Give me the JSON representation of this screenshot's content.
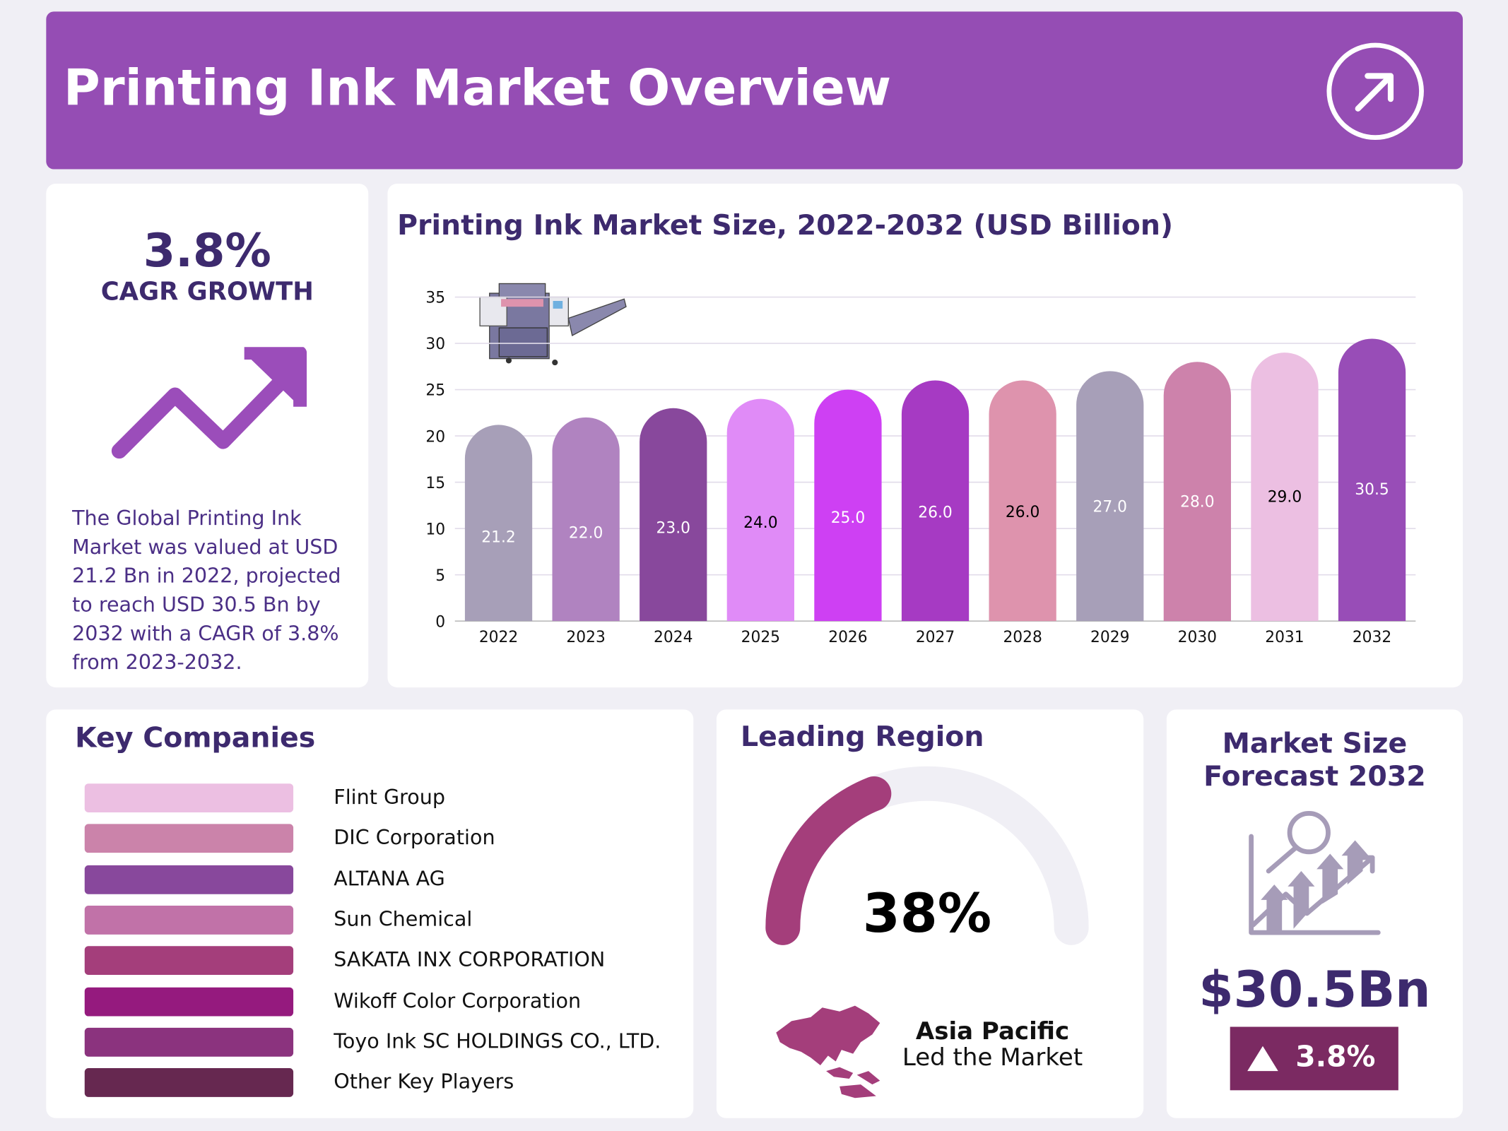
{
  "header": {
    "title": "Printing Ink Market Overview",
    "icon": "arrow-up-right-circle-icon"
  },
  "cagr": {
    "value": "3.8%",
    "label": "CAGR GROWTH",
    "icon": "trend-up-arrow-icon",
    "description": "The Global Printing Ink Market was valued at USD 21.2 Bn in 2022, projected to reach USD 30.5 Bn by 2032 with a CAGR of 3.8% from 2023-2032."
  },
  "chart_data": {
    "type": "bar",
    "title": "Printing Ink Market Size, 2022-2032 (USD Billion)",
    "categories": [
      "2022",
      "2023",
      "2024",
      "2025",
      "2026",
      "2027",
      "2028",
      "2029",
      "2030",
      "2031",
      "2032"
    ],
    "values": [
      21.2,
      22.0,
      23.0,
      24.0,
      25.0,
      26.0,
      26.0,
      27.0,
      28.0,
      29.0,
      30.5
    ],
    "data_labels": [
      "21.2",
      "22.0",
      "23.0",
      "24.0",
      "25.0",
      "26.0",
      "26.0",
      "27.0",
      "28.0",
      "29.0",
      "30.5"
    ],
    "colors": [
      "#a79fb8",
      "#b083c0",
      "#88489c",
      "#e08bf7",
      "#ce40f3",
      "#a63ac3",
      "#de93ad",
      "#a79fb8",
      "#cd82ab",
      "#ecbfe2",
      "#984db7"
    ],
    "label_colors": [
      "#ffffff",
      "#ffffff",
      "#ffffff",
      "#000000",
      "#ffffff",
      "#ffffff",
      "#000000",
      "#ffffff",
      "#ffffff",
      "#000000",
      "#ffffff"
    ],
    "yticks": [
      "0",
      "5",
      "10",
      "15",
      "20",
      "25",
      "30",
      "35"
    ],
    "ylim": [
      0,
      35
    ],
    "grid": true,
    "xlabel": "",
    "ylabel": ""
  },
  "companies": {
    "title": "Key Companies",
    "items": [
      {
        "name": "Flint Group",
        "color": "#ecbfe2"
      },
      {
        "name": "DIC Corporation",
        "color": "#cb83aa"
      },
      {
        "name": "ALTANA AG",
        "color": "#88489c"
      },
      {
        "name": "Sun Chemical",
        "color": "#c172a8"
      },
      {
        "name": "SAKATA INX CORPORATION",
        "color": "#a43e7b"
      },
      {
        "name": "Wikoff Color Corporation",
        "color": "#951a7e"
      },
      {
        "name": "Toyo Ink SC HOLDINGS CO., LTD.",
        "color": "#8b337e"
      },
      {
        "name": "Other Key Players",
        "color": "#662850"
      }
    ]
  },
  "region": {
    "title": "Leading Region",
    "share": "38%",
    "share_fraction": 0.38,
    "name": "Asia Pacific",
    "subtitle": "Led the Market",
    "gauge_color": "#a43e7b",
    "track_color": "#f0eff5"
  },
  "forecast": {
    "title_line1": "Market Size",
    "title_line2": "Forecast 2032",
    "value": "$30.5Bn",
    "growth": "3.8%",
    "badge_color": "#7b2a62"
  }
}
